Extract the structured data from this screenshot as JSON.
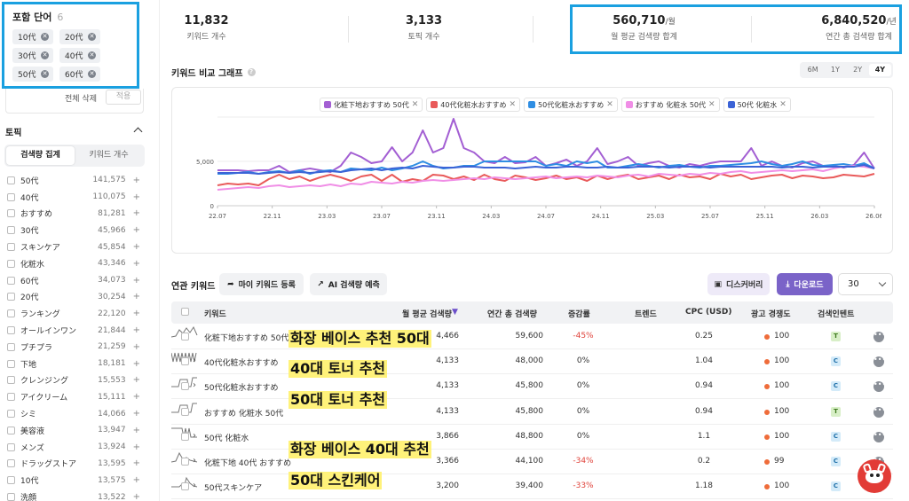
{
  "sidebar": {
    "included_title": "포함 단어",
    "included_count": "6",
    "chips": [
      "10代",
      "20代",
      "30代",
      "40代",
      "50代",
      "60代"
    ],
    "delete_all": "전체 삭제",
    "apply": "적용",
    "topic_title": "토픽",
    "seg_tabs": [
      "검색량 집계",
      "키워드 개수"
    ],
    "topics": [
      {
        "name": "50代",
        "value": "141,575"
      },
      {
        "name": "40代",
        "value": "110,075"
      },
      {
        "name": "おすすめ",
        "value": "81,281"
      },
      {
        "name": "30代",
        "value": "45,966"
      },
      {
        "name": "スキンケア",
        "value": "45,854"
      },
      {
        "name": "化粧水",
        "value": "43,346"
      },
      {
        "name": "60代",
        "value": "34,073"
      },
      {
        "name": "20代",
        "value": "30,254"
      },
      {
        "name": "ランキング",
        "value": "22,120"
      },
      {
        "name": "オールインワン",
        "value": "21,844"
      },
      {
        "name": "プチプラ",
        "value": "21,259"
      },
      {
        "name": "下地",
        "value": "18,181"
      },
      {
        "name": "クレンジング",
        "value": "15,553"
      },
      {
        "name": "アイクリーム",
        "value": "15,111"
      },
      {
        "name": "シミ",
        "value": "14,066"
      },
      {
        "name": "美容液",
        "value": "13,947"
      },
      {
        "name": "メンズ",
        "value": "13,924"
      },
      {
        "name": "ドラッグストア",
        "value": "13,595"
      },
      {
        "name": "10代",
        "value": "13,575"
      },
      {
        "name": "洗顔",
        "value": "13,522"
      }
    ]
  },
  "stats": [
    {
      "value": "11,832",
      "unit": "",
      "label": "키워드 개수"
    },
    {
      "value": "3,133",
      "unit": "",
      "label": "토픽 개수"
    },
    {
      "value": "560,710",
      "unit": "/월",
      "label": "월 평균 검색량 합계"
    },
    {
      "value": "6,840,520",
      "unit": "/년",
      "label": "연간 총 검색량 합계"
    }
  ],
  "chart_section": {
    "title": "키워드 비교 그래프",
    "ranges": [
      "6M",
      "1Y",
      "2Y",
      "4Y"
    ],
    "active_range": "4Y"
  },
  "chart_data": {
    "type": "line",
    "x_ticks": [
      "22.07",
      "22.11",
      "23.03",
      "23.07",
      "23.11",
      "24.03",
      "24.07",
      "24.11",
      "25.03",
      "25.07",
      "25.11",
      "26.03",
      "26.06"
    ],
    "y_ticks": [
      "0",
      "5,000"
    ],
    "ylim": [
      0,
      10000
    ],
    "grid": true,
    "series": [
      {
        "name": "化粧下地おすすめ 50代",
        "color": "#a35fd3",
        "values": [
          4000,
          4000,
          4000,
          3900,
          4000,
          4000,
          4500,
          3800,
          4000,
          4200,
          4000,
          3800,
          4500,
          6000,
          5500,
          4800,
          5000,
          6600,
          5000,
          6000,
          8500,
          6000,
          6500,
          9800,
          6500,
          6000,
          5000,
          4800,
          5500,
          4800,
          4900,
          5500,
          4500,
          4800,
          5200,
          4500,
          5000,
          6500,
          4700,
          5000,
          5500,
          4500,
          4800,
          5000,
          4500,
          4300,
          4700,
          4500,
          4800,
          5000,
          5000,
          5000,
          6500,
          4500,
          5000,
          4500,
          4300,
          4800,
          5000,
          4500,
          4500,
          4300,
          4600,
          6000,
          4200
        ]
      },
      {
        "name": "40代化粧水おすすめ",
        "color": "#e95a5a",
        "values": [
          2300,
          2500,
          2400,
          2500,
          2300,
          3000,
          3500,
          3000,
          3300,
          2800,
          3200,
          3500,
          3200,
          2800,
          3300,
          3500,
          2800,
          3500,
          2700,
          3000,
          2800,
          3500,
          3400,
          3000,
          3300,
          2900,
          3500,
          3000,
          2800,
          3400,
          3200,
          2900,
          3100,
          3400,
          3000,
          3200,
          2800,
          3400,
          3000,
          3300,
          3500,
          3000,
          3200,
          3400,
          3000,
          3500,
          3200,
          3300,
          3000,
          3600,
          3300,
          3500,
          3000,
          3200,
          3400,
          3500,
          3100,
          3400,
          3300,
          3100,
          3200,
          3500,
          3400,
          3300,
          3600
        ]
      },
      {
        "name": "50代化粧水おすすめ",
        "color": "#2f8ee3",
        "values": [
          3600,
          3600,
          3700,
          3800,
          3600,
          3800,
          3900,
          3700,
          4000,
          3600,
          3900,
          4000,
          3800,
          4200,
          4100,
          4000,
          4300,
          4000,
          4200,
          4500,
          5000,
          4500,
          4200,
          4300,
          4500,
          4500,
          5000,
          5000,
          5000,
          5000,
          5000,
          5000,
          4500,
          4700,
          4500,
          5000,
          4800,
          5000,
          4300,
          4300,
          4500,
          4700,
          4500,
          4300,
          4500,
          4600,
          4400,
          4300,
          4500,
          4500,
          4600,
          4700,
          4800,
          5000,
          4700,
          4500,
          4700,
          5000,
          4600,
          4500,
          4600,
          4700,
          4500,
          4800,
          4200
        ]
      },
      {
        "name": "おすすめ 化粧水 50代",
        "color": "#f08ee6",
        "values": [
          1800,
          1900,
          2000,
          2100,
          2000,
          2200,
          2300,
          2100,
          2200,
          2300,
          2200,
          2400,
          2200,
          2500,
          2400,
          2700,
          2600,
          2500,
          2700,
          2600,
          2800,
          2900,
          2800,
          2900,
          3000,
          3100,
          3000,
          3200,
          3100,
          3000,
          3100,
          3200,
          3300,
          3100,
          3200,
          3300,
          3200,
          3400,
          3300,
          3200,
          3400,
          3500,
          3300,
          3600,
          3500,
          3400,
          3600,
          3500,
          3700,
          3600,
          3800,
          3900,
          3700,
          3800,
          3900,
          4000,
          3900,
          4000,
          4100,
          3900,
          4200,
          4400,
          4500,
          4400,
          4200
        ]
      },
      {
        "name": "50代 化粧水",
        "color": "#3b63d6",
        "values": [
          3700,
          3700,
          3700,
          3700,
          3600,
          3700,
          3800,
          3700,
          3800,
          3700,
          3800,
          3900,
          3800,
          4000,
          4100,
          4200,
          4000,
          4200,
          4300,
          4200,
          4500,
          4400,
          4300,
          4300,
          4400,
          4400,
          4300,
          4300,
          4300,
          4200,
          4300,
          4400,
          4300,
          4300,
          4400,
          4400,
          4300,
          4300,
          4400,
          4300,
          4300,
          4400,
          4400,
          4400,
          4300,
          4400,
          4400,
          4400,
          4300,
          4400,
          4400,
          4400,
          4400,
          4400,
          4400,
          4300,
          4400,
          4400,
          4300,
          4400,
          4400,
          4400,
          4400,
          4600,
          4200
        ]
      }
    ]
  },
  "related": {
    "title": "연관 키워드",
    "btn_register": "마이 키워드 등록",
    "btn_ai": "AI 검색량 예측",
    "btn_discovery": "디스커버리",
    "btn_download": "다운로드",
    "page_size": "30",
    "columns": [
      "키워드",
      "월 평균 검색량",
      "연간 총 검색량",
      "증감률",
      "트렌드",
      "CPC (USD)",
      "광고 경쟁도",
      "검색인텐트"
    ],
    "rows": [
      {
        "keyword": "化粧下地おすすめ 50代",
        "monthly": "4,466",
        "annual": "59,600",
        "change": "-45%",
        "neg": true,
        "cpc": "0.25",
        "competition": "100",
        "intent": "T",
        "expand": false
      },
      {
        "keyword": "40代化粧水おすすめ",
        "monthly": "4,133",
        "annual": "48,000",
        "change": "0%",
        "neg": false,
        "cpc": "1.04",
        "competition": "100",
        "intent": "C",
        "expand": true
      },
      {
        "keyword": "50代化粧水おすすめ",
        "monthly": "4,133",
        "annual": "45,800",
        "change": "0%",
        "neg": false,
        "cpc": "0.94",
        "competition": "100",
        "intent": "C",
        "expand": true
      },
      {
        "keyword": "おすすめ 化粧水 50代",
        "monthly": "4,133",
        "annual": "45,800",
        "change": "0%",
        "neg": false,
        "cpc": "0.94",
        "competition": "100",
        "intent": "T",
        "expand": false
      },
      {
        "keyword": "50代 化粧水",
        "monthly": "3,866",
        "annual": "48,800",
        "change": "0%",
        "neg": false,
        "cpc": "1.1",
        "competition": "100",
        "intent": "C",
        "expand": true
      },
      {
        "keyword": "化粧下地 40代 おすすめ",
        "monthly": "3,366",
        "annual": "44,100",
        "change": "-34%",
        "neg": true,
        "cpc": "0.2",
        "competition": "99",
        "intent": "C",
        "expand": true
      },
      {
        "keyword": "50代スキンケア",
        "monthly": "3,200",
        "annual": "39,400",
        "change": "-33%",
        "neg": true,
        "cpc": "1.18",
        "competition": "100",
        "intent": "C",
        "expand": true
      }
    ]
  },
  "overlays": [
    "화장 베이스 추천 50대",
    "40대 토너 추천",
    "50대 토너 추천",
    "화장 베이스 40대 추천",
    "50대 스킨케어"
  ]
}
